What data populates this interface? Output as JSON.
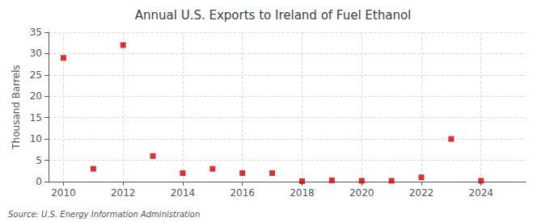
{
  "chart_data": {
    "type": "scatter",
    "title": "Annual U.S. Exports to Ireland of Fuel Ethanol",
    "ylabel": "Thousand Barrels",
    "source": "Source: U.S. Energy Information Administration",
    "x": [
      2010,
      2011,
      2012,
      2013,
      2014,
      2015,
      2016,
      2017,
      2018,
      2019,
      2020,
      2021,
      2022,
      2023,
      2024
    ],
    "values": [
      29,
      3,
      32,
      6,
      2,
      3,
      2,
      2,
      0.1,
      0.3,
      0.2,
      0.2,
      1,
      10,
      0.2
    ],
    "color": "#cc0000",
    "marker": "square",
    "xlim": [
      2009.5,
      2025.5
    ],
    "ylim": [
      0,
      35
    ],
    "xticks": [
      2010,
      2012,
      2014,
      2016,
      2018,
      2020,
      2022,
      2024
    ],
    "yticks": [
      0,
      5,
      10,
      15,
      20,
      25,
      30,
      35
    ],
    "grid": true
  }
}
